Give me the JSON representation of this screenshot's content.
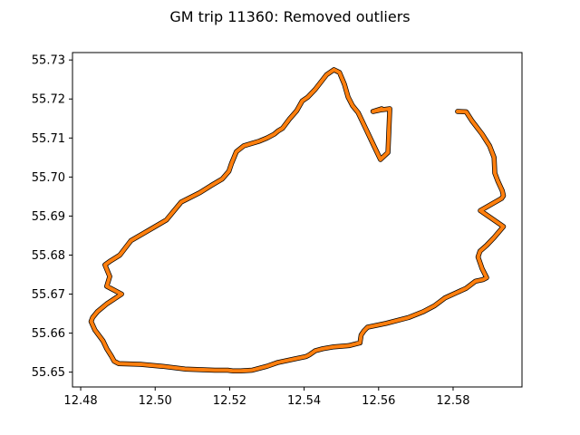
{
  "chart_data": {
    "type": "line",
    "title": "GM trip 11360: Removed outliers",
    "xlabel": "",
    "ylabel": "",
    "xlim": [
      12.4778,
      12.5985
    ],
    "ylim": [
      55.6462,
      55.7319
    ],
    "xticks": [
      12.48,
      12.5,
      12.52,
      12.54,
      12.56,
      12.58
    ],
    "xtick_labels": [
      "12.48",
      "12.50",
      "12.52",
      "12.54",
      "12.56",
      "12.58"
    ],
    "yticks": [
      55.65,
      55.66,
      55.67,
      55.68,
      55.69,
      55.7,
      55.71,
      55.72,
      55.73
    ],
    "ytick_labels": [
      "55.65",
      "55.66",
      "55.67",
      "55.68",
      "55.69",
      "55.70",
      "55.71",
      "55.72",
      "55.73"
    ],
    "grid": false,
    "legend": "none",
    "series": [
      {
        "color": "#ff7f0e",
        "underlay_color": "#000000",
        "x": [
          12.5812,
          12.5835,
          12.585,
          12.5878,
          12.5898,
          12.591,
          12.5912,
          12.592,
          12.5932,
          12.5935,
          12.593,
          12.5873,
          12.5935,
          12.591,
          12.589,
          12.5872,
          12.5867,
          12.5878,
          12.589,
          12.588,
          12.586,
          12.5835,
          12.5812,
          12.5778,
          12.575,
          12.572,
          12.568,
          12.562,
          12.557,
          12.556,
          12.5553,
          12.555,
          12.552,
          12.548,
          12.545,
          12.543,
          12.5415,
          12.5405,
          12.538,
          12.533,
          12.53,
          12.526,
          12.523,
          12.521,
          12.5195,
          12.516,
          12.508,
          12.502,
          12.496,
          12.4902,
          12.489,
          12.4882,
          12.487,
          12.486,
          12.4838,
          12.4828,
          12.4832,
          12.4845,
          12.487,
          12.491,
          12.487,
          12.4878,
          12.4865,
          12.488,
          12.4905,
          12.4935,
          12.498,
          12.503,
          12.507,
          12.512,
          12.515,
          12.518,
          12.5198,
          12.5205,
          12.5218,
          12.5238,
          12.528,
          12.53,
          12.532,
          12.533,
          12.5342,
          12.536,
          12.538,
          12.5395,
          12.541,
          12.543,
          12.546,
          12.548,
          12.5495,
          12.5508,
          12.5518,
          12.553,
          12.5545,
          12.5565,
          12.5585,
          12.5605,
          12.5625,
          12.563,
          12.5605,
          12.5585,
          12.5608
        ],
        "y": [
          55.7168,
          55.7167,
          55.7145,
          55.711,
          55.708,
          55.705,
          55.701,
          55.699,
          55.6965,
          55.6952,
          55.6945,
          55.6914,
          55.6873,
          55.6845,
          55.6825,
          55.681,
          55.6795,
          55.6765,
          55.6742,
          55.6737,
          55.6733,
          55.6715,
          55.6705,
          55.669,
          55.667,
          55.6655,
          55.664,
          55.6625,
          55.6615,
          55.6605,
          55.6595,
          55.6575,
          55.6568,
          55.6565,
          55.656,
          55.6555,
          55.6545,
          55.654,
          55.6535,
          55.6525,
          55.6515,
          55.6505,
          55.6503,
          55.6503,
          55.6505,
          55.6505,
          55.6508,
          55.6515,
          55.652,
          55.6522,
          55.6528,
          55.6542,
          55.656,
          55.658,
          55.6608,
          55.663,
          55.664,
          55.6655,
          55.6675,
          55.67,
          55.672,
          55.6745,
          55.6775,
          55.6785,
          55.68,
          55.6837,
          55.6862,
          55.689,
          55.6936,
          55.696,
          55.6978,
          55.6995,
          55.7015,
          55.7035,
          55.7065,
          55.708,
          55.7092,
          55.71,
          55.711,
          55.7118,
          55.7125,
          55.7148,
          55.717,
          55.7195,
          55.7205,
          55.7225,
          55.7262,
          55.7275,
          55.7268,
          55.7238,
          55.7205,
          55.7183,
          55.7165,
          55.7125,
          55.7085,
          55.7045,
          55.7063,
          55.7175,
          55.7172,
          55.7168,
          55.7175
        ]
      }
    ]
  }
}
